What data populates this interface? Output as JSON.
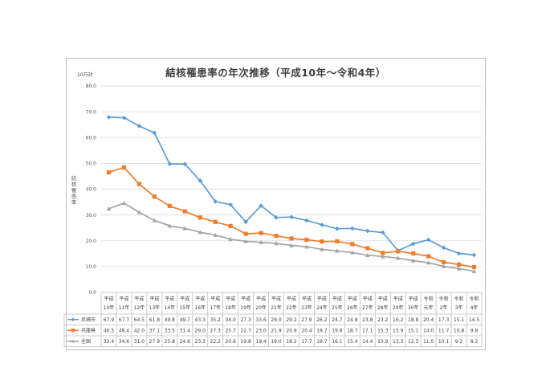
{
  "chart_data": {
    "type": "line",
    "title": "結核罹患率の年次推移（平成10年～令和4年）",
    "unit_label": "10万対",
    "ylabel": "結核罹患率",
    "ylim": [
      0,
      80
    ],
    "yticks": [
      "0.0",
      "10.0",
      "20.0",
      "30.0",
      "40.0",
      "50.0",
      "60.0",
      "70.0",
      "80.0"
    ],
    "grid": true,
    "categories": [
      {
        "line1": "平成",
        "line2": "10年"
      },
      {
        "line1": "平成",
        "line2": "11年"
      },
      {
        "line1": "平成",
        "line2": "12年"
      },
      {
        "line1": "平成",
        "line2": "13年"
      },
      {
        "line1": "平成",
        "line2": "14年"
      },
      {
        "line1": "平成",
        "line2": "15年"
      },
      {
        "line1": "平成",
        "line2": "16年"
      },
      {
        "line1": "平成",
        "line2": "17年"
      },
      {
        "line1": "平成",
        "line2": "18年"
      },
      {
        "line1": "平成",
        "line2": "19年"
      },
      {
        "line1": "平成",
        "line2": "20年"
      },
      {
        "line1": "平成",
        "line2": "21年"
      },
      {
        "line1": "平成",
        "line2": "22年"
      },
      {
        "line1": "平成",
        "line2": "23年"
      },
      {
        "line1": "平成",
        "line2": "24年"
      },
      {
        "line1": "平成",
        "line2": "25年"
      },
      {
        "line1": "平成",
        "line2": "26年"
      },
      {
        "line1": "平成",
        "line2": "27年"
      },
      {
        "line1": "平成",
        "line2": "28年"
      },
      {
        "line1": "平成",
        "line2": "29年"
      },
      {
        "line1": "平成",
        "line2": "30年"
      },
      {
        "line1": "令和",
        "line2": "元年"
      },
      {
        "line1": "令和",
        "line2": "2年"
      },
      {
        "line1": "令和",
        "line2": "3年"
      },
      {
        "line1": "令和",
        "line2": "4年"
      }
    ],
    "series": [
      {
        "name": "尼崎市",
        "color": "#5b9bd5",
        "marker": "diamond",
        "values": [
          67.9,
          67.7,
          64.5,
          61.8,
          49.8,
          49.7,
          43.3,
          35.2,
          34.0,
          27.3,
          33.6,
          29.0,
          29.2,
          27.9,
          26.2,
          24.7,
          24.8,
          23.8,
          23.2,
          16.2,
          18.8,
          20.4,
          17.3,
          15.1,
          14.5
        ],
        "labels": [
          "67.9",
          "67.7",
          "64.5",
          "61.8",
          "49.8",
          "49.7",
          "43.3",
          "35.2",
          "34.0",
          "27.3",
          "33.6",
          "29.0",
          "29.2",
          "27.9",
          "26.2",
          "24.7",
          "24.8",
          "23.8",
          "23.2",
          "16.2",
          "18.8",
          "20.4",
          "17.3",
          "15.1",
          "14.5"
        ]
      },
      {
        "name": "兵庫県",
        "color": "#ed7d31",
        "marker": "square",
        "values": [
          46.5,
          48.4,
          42.0,
          37.1,
          33.5,
          31.4,
          29.0,
          27.3,
          25.7,
          22.7,
          23.0,
          21.9,
          20.9,
          20.4,
          19.7,
          19.8,
          18.7,
          17.1,
          15.3,
          15.9,
          15.1,
          14.0,
          11.7,
          10.8,
          9.8
        ],
        "labels": [
          "46.5",
          "48.4",
          "42.0",
          "37.1",
          "33.5",
          "31.4",
          "29.0",
          "27.3",
          "25.7",
          "22.7",
          "23.0",
          "21.9",
          "20.9",
          "20.4",
          "19.7",
          "19.8",
          "18.7",
          "17.1",
          "15.3",
          "15.9",
          "15.1",
          "14.0",
          "11.7",
          "10.8",
          "9.8"
        ]
      },
      {
        "name": "全国",
        "color": "#a5a5a5",
        "marker": "triangle",
        "values": [
          32.4,
          34.6,
          31.0,
          27.9,
          25.8,
          24.8,
          23.3,
          22.2,
          20.6,
          19.8,
          19.4,
          19.0,
          18.2,
          17.7,
          16.7,
          16.1,
          15.4,
          14.4,
          13.9,
          13.3,
          12.3,
          11.5,
          10.1,
          9.2,
          8.2
        ],
        "labels": [
          "32.4",
          "34.6",
          "31.0",
          "27.9",
          "25.8",
          "24.8",
          "23.3",
          "22.2",
          "20.6",
          "19.8",
          "19.4",
          "19.0",
          "18.2",
          "17.7",
          "16.7",
          "16.1",
          "15.4",
          "14.4",
          "13.9",
          "13.3",
          "12.3",
          "11.5",
          "10.1",
          "9.2",
          "8.2"
        ]
      }
    ]
  }
}
